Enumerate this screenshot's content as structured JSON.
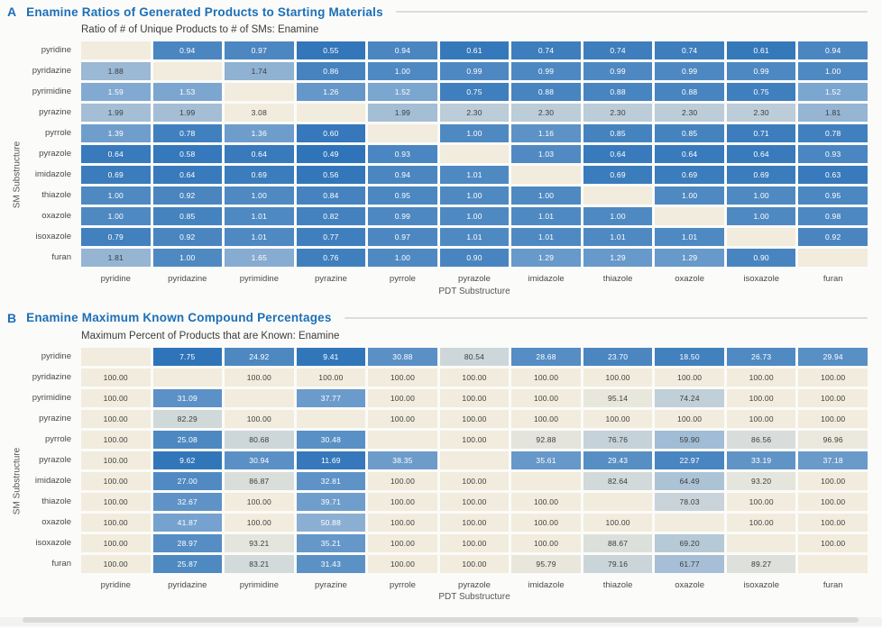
{
  "accent_color": "#1c6fb8",
  "page_background": "#fbfbf9",
  "panels": {
    "a": {
      "letter": "A",
      "title": "Enamine Ratios of Generated Products to Starting Materials",
      "subtitle": "Ratio of # of Unique Products to # of SMs: Enamine",
      "xlabel": "PDT Substructure",
      "ylabel": "SM Substructure"
    },
    "b": {
      "letter": "B",
      "title": "Enamine Maximum Known Compound Percentages",
      "subtitle": "Maximum Percent of Products that are Known: Enamine",
      "xlabel": "PDT Substructure",
      "ylabel": "SM Substructure"
    }
  },
  "colormap": {
    "stops": [
      {
        "t": 0.0,
        "color": "#2f74b9"
      },
      {
        "t": 0.2,
        "color": "#4f89c2"
      },
      {
        "t": 0.4,
        "color": "#7ca6d0"
      },
      {
        "t": 0.6,
        "color": "#a9c1d6"
      },
      {
        "t": 0.8,
        "color": "#cfd8da"
      },
      {
        "t": 1.0,
        "color": "#f1ecdd"
      }
    ],
    "null_color": "#f1ecdd",
    "text_threshold": 0.475,
    "dark_text": "#3d3d3d",
    "light_text": "#ffffff"
  },
  "chart_data": [
    {
      "type": "heatmap",
      "panel": "a",
      "title": "Ratio of # of Unique Products to # of SMs: Enamine",
      "xlabel": "PDT Substructure",
      "ylabel": "SM Substructure",
      "columns": [
        "pyridine",
        "pyridazine",
        "pyrimidine",
        "pyrazine",
        "pyrrole",
        "pyrazole",
        "imidazole",
        "thiazole",
        "oxazole",
        "isoxazole",
        "furan"
      ],
      "rows": [
        "pyridine",
        "pyridazine",
        "pyrimidine",
        "pyrazine",
        "pyrrole",
        "pyrazole",
        "imidazole",
        "thiazole",
        "oxazole",
        "isoxazole",
        "furan"
      ],
      "color_domain": [
        0.49,
        3.08
      ],
      "decimals": 2,
      "values": [
        [
          null,
          0.94,
          0.97,
          0.55,
          0.94,
          0.61,
          0.74,
          0.74,
          0.74,
          0.61,
          0.94
        ],
        [
          1.88,
          null,
          1.74,
          0.86,
          1.0,
          0.99,
          0.99,
          0.99,
          0.99,
          0.99,
          1.0
        ],
        [
          1.59,
          1.53,
          null,
          1.26,
          1.52,
          0.75,
          0.88,
          0.88,
          0.88,
          0.75,
          1.52
        ],
        [
          1.99,
          1.99,
          3.08,
          null,
          1.99,
          2.3,
          2.3,
          2.3,
          2.3,
          2.3,
          1.81
        ],
        [
          1.39,
          0.78,
          1.36,
          0.6,
          null,
          1.0,
          1.16,
          0.85,
          0.85,
          0.71,
          0.78
        ],
        [
          0.64,
          0.58,
          0.64,
          0.49,
          0.93,
          null,
          1.03,
          0.64,
          0.64,
          0.64,
          0.93
        ],
        [
          0.69,
          0.64,
          0.69,
          0.56,
          0.94,
          1.01,
          null,
          0.69,
          0.69,
          0.69,
          0.63
        ],
        [
          1.0,
          0.92,
          1.0,
          0.84,
          0.95,
          1.0,
          1.0,
          null,
          1.0,
          1.0,
          0.95
        ],
        [
          1.0,
          0.85,
          1.01,
          0.82,
          0.99,
          1.0,
          1.01,
          1.0,
          null,
          1.0,
          0.98
        ],
        [
          0.79,
          0.92,
          1.01,
          0.77,
          0.97,
          1.01,
          1.01,
          1.01,
          1.01,
          null,
          0.92
        ],
        [
          1.81,
          1.0,
          1.65,
          0.76,
          1.0,
          0.9,
          1.29,
          1.29,
          1.29,
          0.9,
          null
        ]
      ]
    },
    {
      "type": "heatmap",
      "panel": "b",
      "title": "Maximum Percent of Products that are Known: Enamine",
      "xlabel": "PDT Substructure",
      "ylabel": "SM Substructure",
      "columns": [
        "pyridine",
        "pyridazine",
        "pyrimidine",
        "pyrazine",
        "pyrrole",
        "pyrazole",
        "imidazole",
        "thiazole",
        "oxazole",
        "isoxazole",
        "furan"
      ],
      "rows": [
        "pyridine",
        "pyridazine",
        "pyrimidine",
        "pyrazine",
        "pyrrole",
        "pyrazole",
        "imidazole",
        "thiazole",
        "oxazole",
        "isoxazole",
        "furan"
      ],
      "color_domain": [
        7.75,
        100
      ],
      "decimals": 2,
      "values": [
        [
          null,
          7.75,
          24.92,
          9.41,
          30.88,
          80.54,
          28.68,
          23.7,
          18.5,
          26.73,
          29.94
        ],
        [
          100.0,
          null,
          100.0,
          100.0,
          100.0,
          100.0,
          100.0,
          100.0,
          100.0,
          100.0,
          100.0
        ],
        [
          100.0,
          31.09,
          null,
          37.77,
          100.0,
          100.0,
          100.0,
          95.14,
          74.24,
          100.0,
          100.0
        ],
        [
          100.0,
          82.29,
          100.0,
          null,
          100.0,
          100.0,
          100.0,
          100.0,
          100.0,
          100.0,
          100.0
        ],
        [
          100.0,
          25.08,
          80.68,
          30.48,
          null,
          100.0,
          92.88,
          76.76,
          59.9,
          86.56,
          96.96
        ],
        [
          100.0,
          9.62,
          30.94,
          11.69,
          38.35,
          null,
          35.61,
          29.43,
          22.97,
          33.19,
          37.18
        ],
        [
          100.0,
          27.0,
          86.87,
          32.81,
          100.0,
          100.0,
          null,
          82.64,
          64.49,
          93.2,
          100.0
        ],
        [
          100.0,
          32.67,
          100.0,
          39.71,
          100.0,
          100.0,
          100.0,
          null,
          78.03,
          100.0,
          100.0
        ],
        [
          100.0,
          41.87,
          100.0,
          50.88,
          100.0,
          100.0,
          100.0,
          100.0,
          null,
          100.0,
          100.0
        ],
        [
          100.0,
          28.97,
          93.21,
          35.21,
          100.0,
          100.0,
          100.0,
          88.67,
          69.2,
          null,
          100.0
        ],
        [
          100.0,
          25.87,
          83.21,
          31.43,
          100.0,
          100.0,
          95.79,
          79.16,
          61.77,
          89.27,
          null
        ]
      ]
    }
  ]
}
